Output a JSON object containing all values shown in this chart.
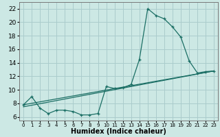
{
  "background_color": "#cce8e4",
  "grid_color": "#aacccc",
  "line_color": "#1a6e64",
  "xlim": [
    -0.5,
    23.5
  ],
  "ylim": [
    5.5,
    23.0
  ],
  "xticks": [
    0,
    1,
    2,
    3,
    4,
    5,
    6,
    7,
    8,
    9,
    10,
    11,
    12,
    13,
    14,
    15,
    16,
    17,
    18,
    19,
    20,
    21,
    22,
    23
  ],
  "yticks": [
    6,
    8,
    10,
    12,
    14,
    16,
    18,
    20,
    22
  ],
  "xlabel": "Humidex (Indice chaleur)",
  "series": [
    {
      "x": [
        0,
        1,
        2,
        3,
        4,
        5,
        6,
        7,
        8,
        9,
        10,
        11,
        12,
        13,
        14,
        15,
        16,
        17,
        18,
        19,
        20,
        21,
        22,
        23
      ],
      "y": [
        7.8,
        9.0,
        7.3,
        6.5,
        7.0,
        7.0,
        6.8,
        6.3,
        6.3,
        6.5,
        10.5,
        10.2,
        10.3,
        10.8,
        14.5,
        22.0,
        21.0,
        20.5,
        19.3,
        17.8,
        14.3,
        12.5,
        12.7,
        12.8
      ],
      "marker": true
    },
    {
      "x": [
        0,
        23
      ],
      "y": [
        7.8,
        12.8
      ],
      "marker": false
    },
    {
      "x": [
        0,
        23
      ],
      "y": [
        7.5,
        12.8
      ],
      "marker": false
    }
  ]
}
